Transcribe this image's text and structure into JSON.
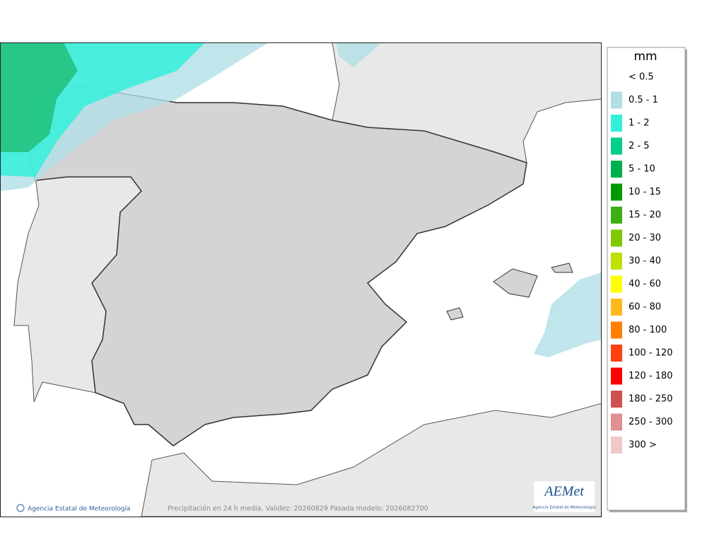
{
  "legend": {
    "title": "mm",
    "items": [
      {
        "label": "< 0.5"
      },
      {
        "label": "0.5 - 1",
        "color": "#b0dfe5"
      },
      {
        "label": "1 - 2",
        "color": "#34f0d9"
      },
      {
        "label": "2 - 5",
        "color": "#00d08a"
      },
      {
        "label": "5 - 10",
        "color": "#00b04e"
      },
      {
        "label": "10 - 15",
        "color": "#009a00"
      },
      {
        "label": "15 - 20",
        "color": "#3cb014"
      },
      {
        "label": "20 - 30",
        "color": "#80c800"
      },
      {
        "label": "30 - 40",
        "color": "#c0e000"
      },
      {
        "label": "40 - 60",
        "color": "#ffff00"
      },
      {
        "label": "60 - 80",
        "color": "#ffb81c"
      },
      {
        "label": "80 - 100",
        "color": "#ff8000"
      },
      {
        "label": "100 - 120",
        "color": "#ff4010"
      },
      {
        "label": "120 - 180",
        "color": "#ff0000"
      },
      {
        "label": "180 - 250",
        "color": "#d05050"
      },
      {
        "label": "250 - 300",
        "color": "#e09090"
      },
      {
        "label": "300 >",
        "color": "#f0c8c8"
      }
    ]
  },
  "map": {
    "credit": "Agencia Estatal de Meteorología",
    "caption": "Precipitación en 24 h media. Validez: 20260829 Pasada modelo: 2026082700",
    "logo": {
      "name": "AEMet",
      "subtitle": "Agencia Estatal de Meteorología"
    }
  }
}
